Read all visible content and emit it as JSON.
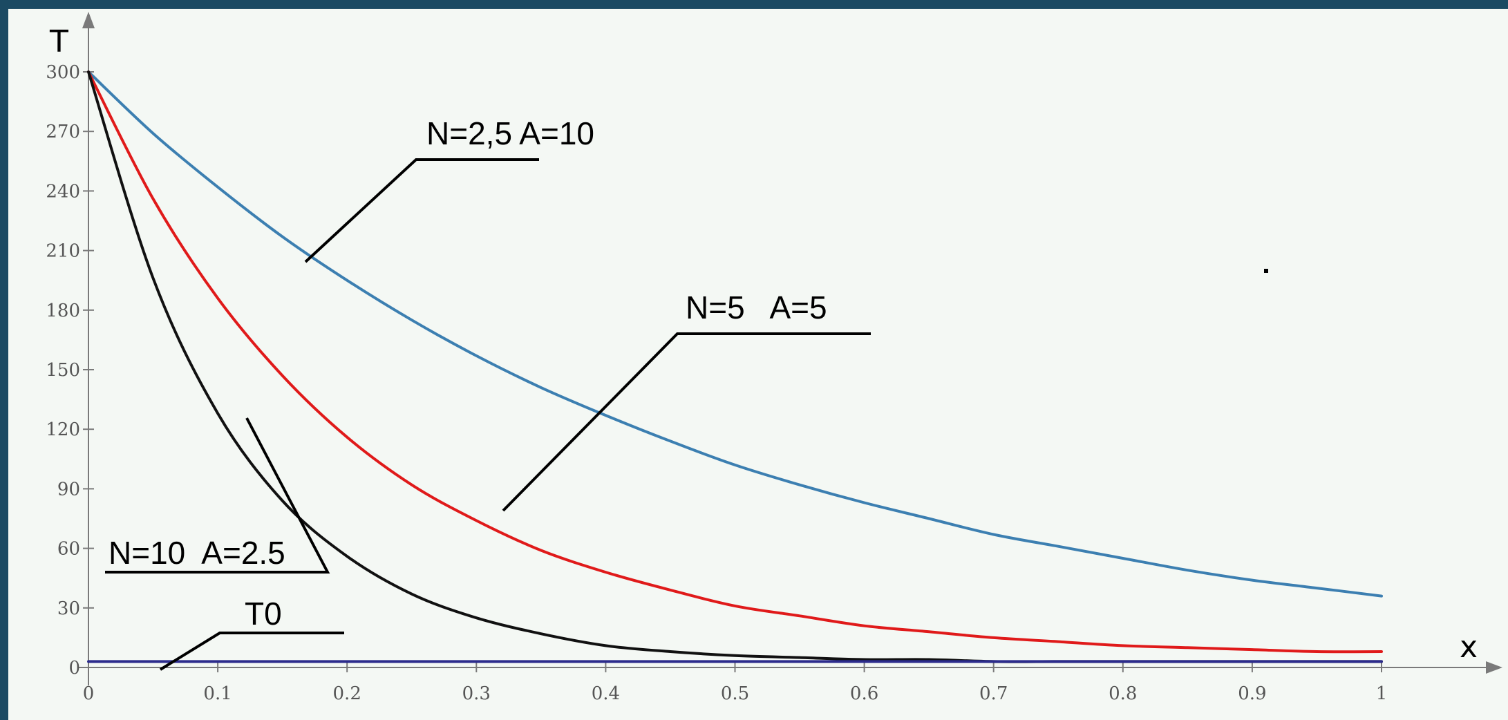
{
  "chart_data": {
    "type": "line",
    "xlabel": "x",
    "ylabel": "T",
    "xlim": [
      0,
      1
    ],
    "ylim": [
      0,
      300
    ],
    "x_ticks": [
      "0",
      "0.1",
      "0.2",
      "0.3",
      "0.4",
      "0.5",
      "0.6",
      "0.7",
      "0.8",
      "0.9",
      "1"
    ],
    "y_ticks": [
      "0",
      "30",
      "60",
      "90",
      "120",
      "150",
      "180",
      "210",
      "240",
      "270",
      "300"
    ],
    "grid": false,
    "colors": {
      "curve_blue": "#3c7fb1",
      "curve_red": "#e01a1a",
      "curve_black": "#111111",
      "baseline": "#2c2c8c"
    },
    "x": [
      0,
      0.05,
      0.1,
      0.15,
      0.2,
      0.25,
      0.3,
      0.35,
      0.4,
      0.45,
      0.5,
      0.55,
      0.6,
      0.65,
      0.7,
      0.75,
      0.8,
      0.85,
      0.9,
      0.95,
      1
    ],
    "series": [
      {
        "label": "N=2,5 A=10",
        "color": "#3c7fb1",
        "values": [
          300,
          269,
          242,
          217,
          195,
          175,
          157,
          141,
          127,
          114,
          102,
          92,
          83,
          75,
          67,
          61,
          55,
          49,
          44,
          40,
          36
        ]
      },
      {
        "label": "N=5   A=5",
        "color": "#e01a1a",
        "values": [
          300,
          236,
          186,
          147,
          116,
          92,
          74,
          59,
          48,
          39,
          31,
          26,
          21,
          18,
          15,
          13,
          11,
          10,
          9,
          8,
          8
        ]
      },
      {
        "label": "N=10  A=2.5",
        "color": "#111111",
        "values": [
          300,
          196,
          128,
          84,
          56,
          37,
          25,
          17,
          11,
          8,
          6,
          5,
          4,
          4,
          3,
          3,
          3,
          3,
          3,
          3,
          3
        ]
      },
      {
        "label": "T0",
        "color": "#2c2c8c",
        "values": [
          3,
          3,
          3,
          3,
          3,
          3,
          3,
          3,
          3,
          3,
          3,
          3,
          3,
          3,
          3,
          3,
          3,
          3,
          3,
          3,
          3
        ]
      }
    ]
  }
}
